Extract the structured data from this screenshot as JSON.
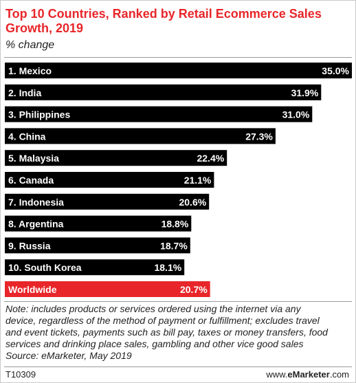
{
  "title": "Top 10 Countries, Ranked by Retail Ecommerce Sales Growth, 2019",
  "subtitle": "% change",
  "colors": {
    "bar": "#000000",
    "highlight": "#e8262a",
    "title": "#e8262a"
  },
  "chart_data": {
    "type": "bar",
    "orientation": "horizontal",
    "title": "Top 10 Countries, Ranked by Retail Ecommerce Sales Growth, 2019",
    "subtitle": "% change",
    "unit": "%",
    "grid": false,
    "categories": [
      "1. Mexico",
      "2. India",
      "3. Philippines",
      "4. China",
      "5. Malaysia",
      "6. Canada",
      "7. Indonesia",
      "8. Argentina",
      "9. Russia",
      "10. South Korea",
      "Worldwide"
    ],
    "values": [
      35.0,
      31.9,
      31.0,
      27.3,
      22.4,
      21.1,
      20.6,
      18.8,
      18.7,
      18.1,
      20.7
    ],
    "value_labels": [
      "35.0%",
      "31.9%",
      "31.0%",
      "27.3%",
      "22.4%",
      "21.1%",
      "20.6%",
      "18.8%",
      "18.7%",
      "18.1%",
      "20.7%"
    ],
    "highlighted": [
      "Worldwide"
    ],
    "xlim": [
      0,
      35.0
    ]
  },
  "note": {
    "lines": [
      "Note: includes products or services ordered using the internet via any",
      "device, regardless of the method of payment or fulfillment; excludes travel",
      "and event tickets, payments such as bill pay, taxes or money transfers, food",
      "services and drinking place sales, gambling and other vice good sales",
      "Source: eMarketer, May 2019"
    ]
  },
  "footer": {
    "id": "T10309",
    "brand_prefix": "www.",
    "brand_name": "eMarketer",
    "brand_suffix": ".com"
  }
}
